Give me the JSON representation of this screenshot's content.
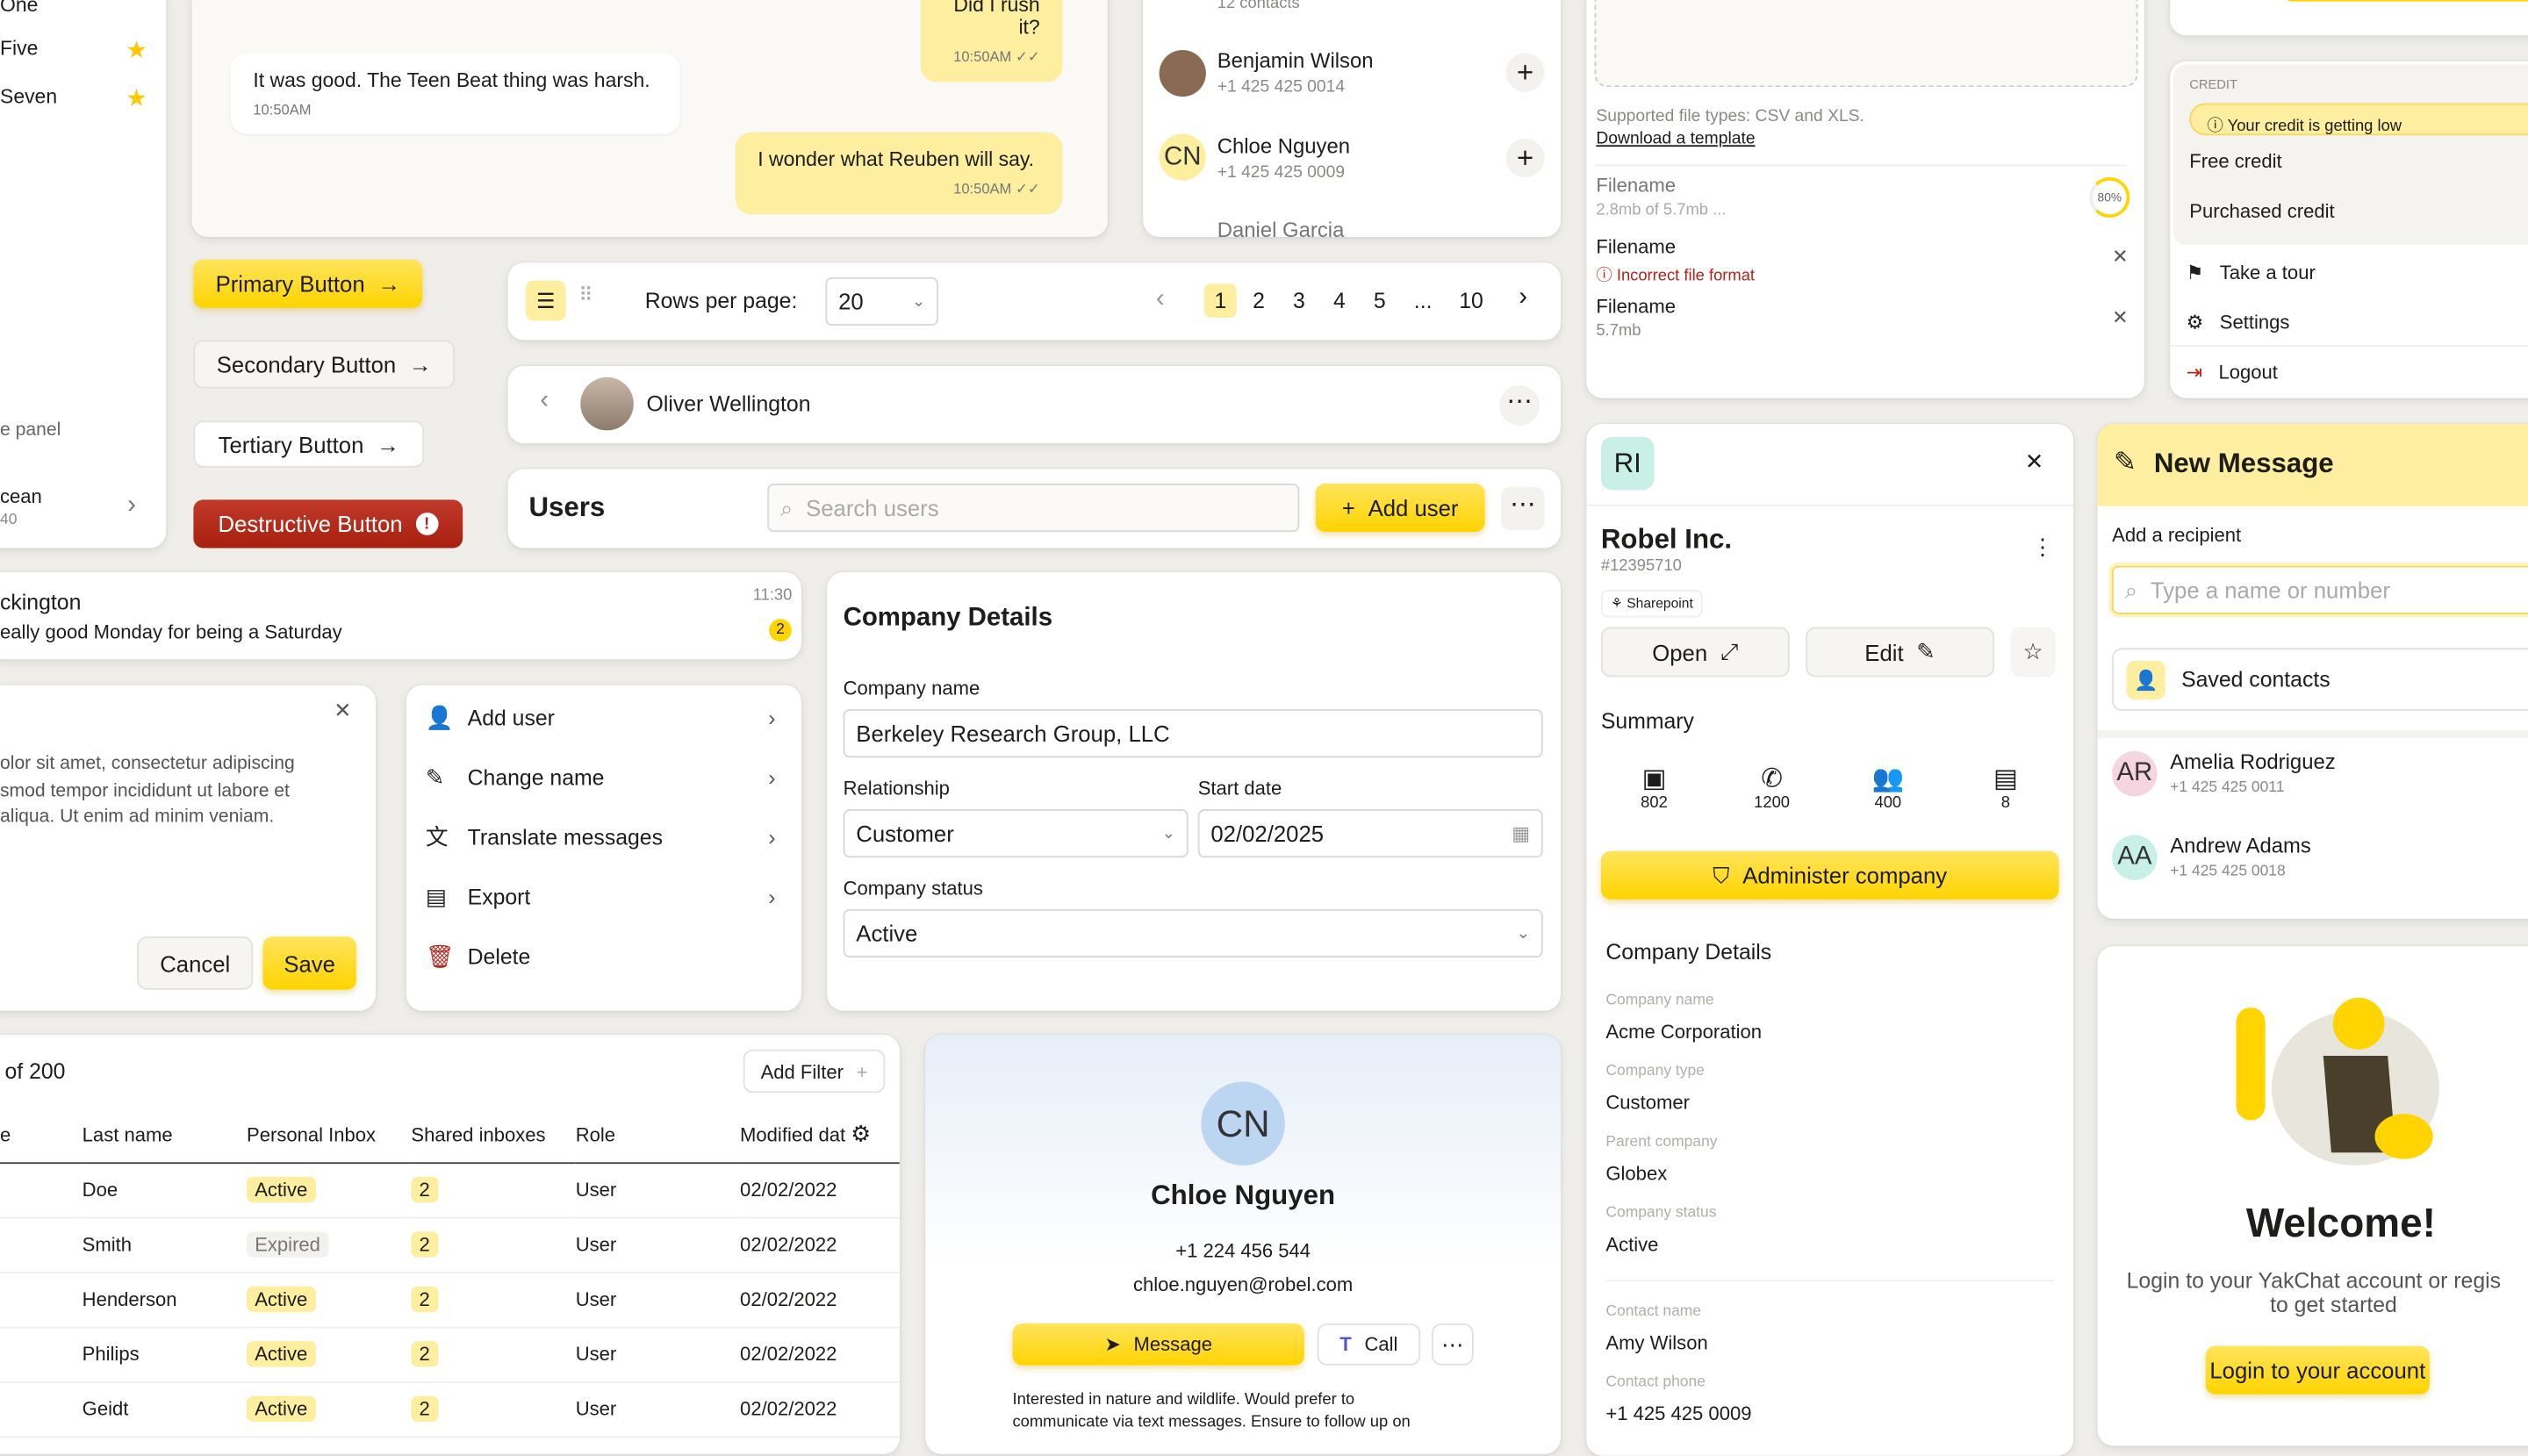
{
  "sidebar": {
    "items": [
      {
        "label": "One"
      },
      {
        "label": "Five",
        "starred": true
      },
      {
        "label": "Seven",
        "starred": true
      }
    ],
    "panel_text": "e panel",
    "item_title": "cean",
    "item_sub": "40"
  },
  "chat": {
    "messages": [
      {
        "text": "Did I rush it?",
        "time": "10:50AM",
        "dir": "out"
      },
      {
        "text": "It was good. The Teen Beat thing was harsh.",
        "time": "10:50AM",
        "dir": "in"
      },
      {
        "text": "I wonder what Reuben will say.",
        "time": "10:50AM",
        "dir": "out"
      }
    ]
  },
  "buttons": {
    "primary": "Primary Button",
    "secondary": "Secondary Button",
    "tertiary": "Tertiary Button",
    "destructive": "Destructive Button"
  },
  "contacts": {
    "count": "12 contacts",
    "items": [
      {
        "name": "Benjamin Wilson",
        "phone": "+1 425 425 0014",
        "initials": ""
      },
      {
        "name": "Chloe Nguyen",
        "phone": "+1 425 425 0009",
        "initials": "CN"
      },
      {
        "name": "Daniel Garcia",
        "phone": "",
        "initials": ""
      }
    ]
  },
  "pagination": {
    "rows_label": "Rows per page:",
    "rows_value": "20",
    "pages": [
      "1",
      "2",
      "3",
      "4",
      "5",
      "...",
      "10"
    ],
    "current": "1"
  },
  "conversation_header": {
    "name": "Oliver Wellington"
  },
  "users_bar": {
    "title": "Users",
    "search_placeholder": "Search users",
    "add_label": "Add user"
  },
  "upload": {
    "supported": "Supported file types: CSV and XLS.",
    "template_link": "Download a template",
    "files": [
      {
        "name": "Filename",
        "sub": "2.8mb of 5.7mb ...",
        "progress": "80%"
      },
      {
        "name": "Filename",
        "error": "Incorrect file format"
      },
      {
        "name": "Filename",
        "sub": "5.7mb"
      }
    ]
  },
  "account_menu": {
    "section": "CREDIT",
    "warning": "Your credit is getting low",
    "free": "Free credit",
    "purchased": "Purchased credit",
    "items": [
      "Take a tour",
      "Settings",
      "Logout"
    ]
  },
  "message_row": {
    "name": "ckington",
    "preview": "eally good Monday for being a Saturday",
    "time": "11:30",
    "unread": "2"
  },
  "modal": {
    "body": "olor sit amet, consectetur adipiscing smod tempor incididunt ut labore et aliqua. Ut enim ad minim veniam.",
    "lines": [
      "olor sit amet, consectetur adipiscing",
      "smod tempor incididunt ut labore et",
      "aliqua. Ut enim ad minim veniam."
    ],
    "cancel": "Cancel",
    "save": "Save"
  },
  "action_menu": {
    "items": [
      "Add user",
      "Change name",
      "Translate messages",
      "Export",
      "Delete"
    ]
  },
  "company_form": {
    "title": "Company Details",
    "name_label": "Company name",
    "name_value": "Berkeley Research Group, LLC",
    "relationship_label": "Relationship",
    "relationship_value": "Customer",
    "start_label": "Start date",
    "start_value": "02/02/2025",
    "status_label": "Company status",
    "status_value": "Active"
  },
  "table": {
    "count": "of 200",
    "add_filter": "Add Filter",
    "headers": [
      "e",
      "Last name",
      "Personal Inbox",
      "Shared inboxes",
      "Role",
      "Modified dat"
    ],
    "rows": [
      {
        "last": "Doe",
        "inbox": "Active",
        "shared": "2",
        "role": "User",
        "date": "02/02/2022"
      },
      {
        "last": "Smith",
        "inbox": "Expired",
        "shared": "2",
        "role": "User",
        "date": "02/02/2022"
      },
      {
        "last": "Henderson",
        "inbox": "Active",
        "shared": "2",
        "role": "User",
        "date": "02/02/2022"
      },
      {
        "last": "Philips",
        "inbox": "Active",
        "shared": "2",
        "role": "User",
        "date": "02/02/2022"
      },
      {
        "last": "Geidt",
        "inbox": "Active",
        "shared": "2",
        "role": "User",
        "date": "02/02/2022"
      }
    ]
  },
  "contact_card": {
    "initials": "CN",
    "name": "Chloe Nguyen",
    "phone": "+1 224 456 544",
    "email": "chloe.nguyen@robel.com",
    "message": "Message",
    "call": "Call",
    "bio1": "Interested in nature and wildlife. Would prefer to",
    "bio2": "communicate via text messages. Ensure to follow up on"
  },
  "company_panel": {
    "initials": "RI",
    "name": "Robel Inc.",
    "id": "#12395710",
    "tag": "Sharepoint",
    "open": "Open",
    "edit": "Edit",
    "summary": "Summary",
    "stats": [
      "802",
      "1200",
      "400",
      "8"
    ],
    "administer": "Administer company",
    "details_title": "Company Details",
    "fields": [
      {
        "label": "Company name",
        "value": "Acme Corporation"
      },
      {
        "label": "Company type",
        "value": "Customer"
      },
      {
        "label": "Parent company",
        "value": "Globex"
      },
      {
        "label": "Company status",
        "value": "Active"
      },
      {
        "label": "Contact name",
        "value": "Amy Wilson"
      },
      {
        "label": "Contact phone",
        "value": "+1 425 425 0009"
      }
    ]
  },
  "new_message": {
    "title": "New Message",
    "recipient_label": "Add a recipient",
    "search_placeholder": "Type a name or number",
    "saved": "Saved contacts",
    "contacts": [
      {
        "initials": "AR",
        "name": "Amelia Rodriguez",
        "phone": "+1 425 425 0011"
      },
      {
        "initials": "AA",
        "name": "Andrew Adams",
        "phone": "+1 425 425 0018"
      }
    ]
  },
  "welcome": {
    "title": "Welcome!",
    "text1": "Login to your YakChat account or regis",
    "text2": "to get started",
    "login": "Login to your account"
  },
  "colors": {
    "accent": "#ffd400",
    "accent_light": "#fdeea0",
    "danger": "#b42318",
    "background": "#efeeea"
  }
}
